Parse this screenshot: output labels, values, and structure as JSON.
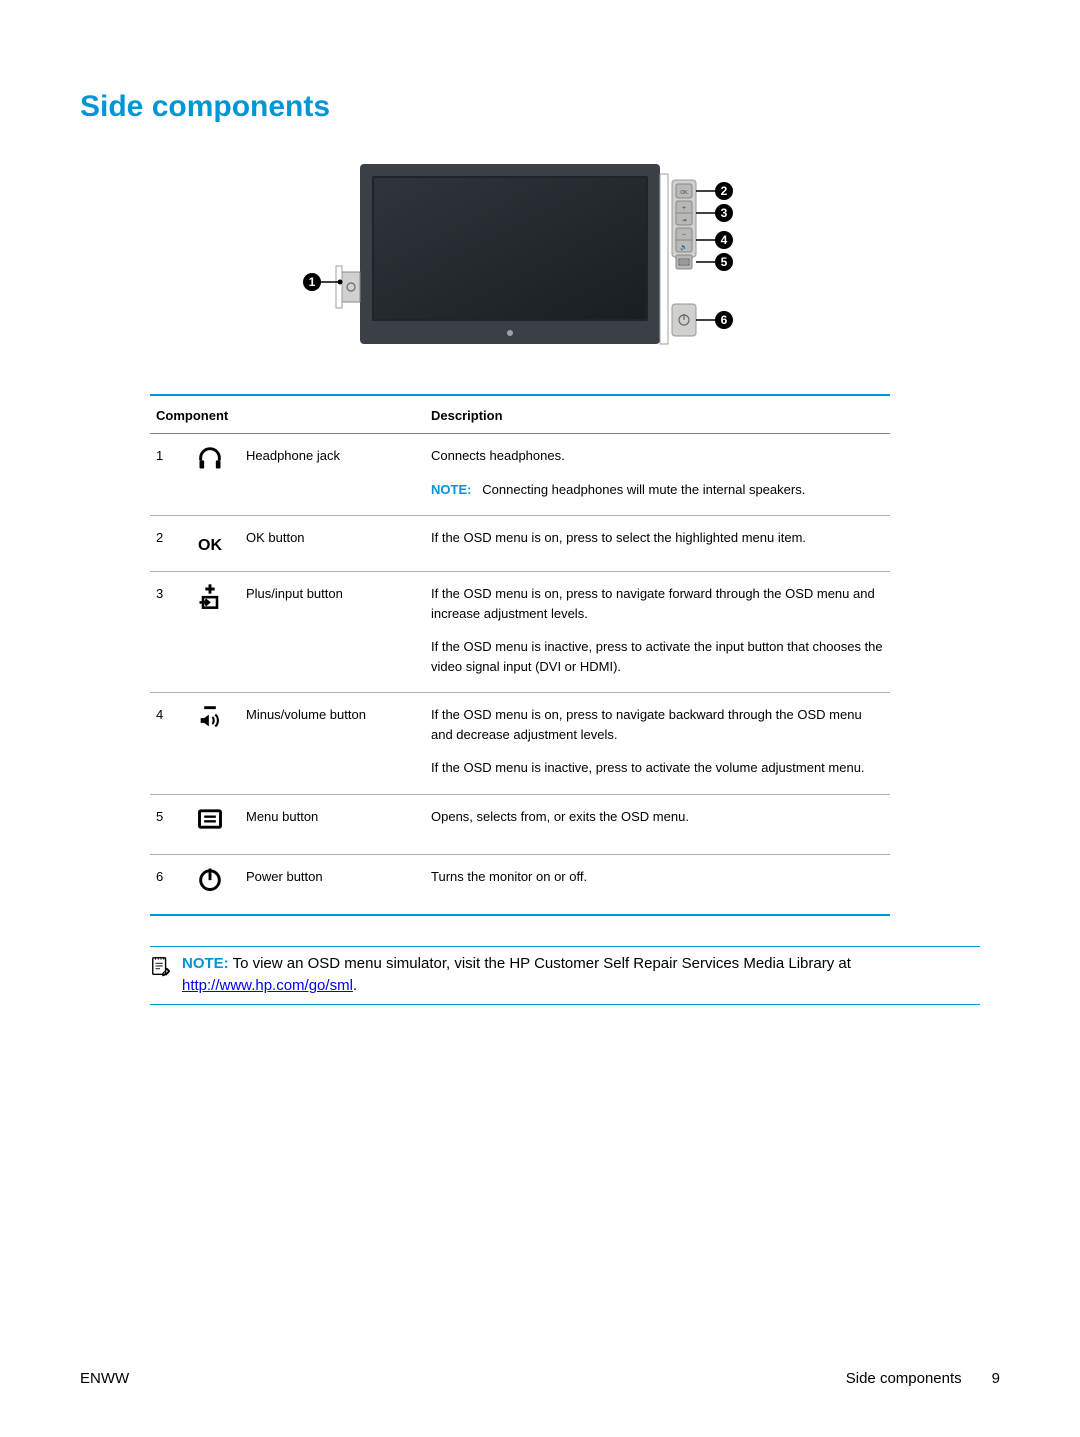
{
  "title": "Side components",
  "table": {
    "headers": {
      "component": "Component",
      "description": "Description"
    },
    "rows": [
      {
        "num": "1",
        "icon": "headphone-icon",
        "component": "Headphone jack",
        "desc": [
          "Connects headphones.",
          {
            "note": "NOTE:",
            "text": "Connecting headphones will mute the internal speakers."
          }
        ]
      },
      {
        "num": "2",
        "icon": "ok-icon",
        "component": "OK button",
        "desc": [
          "If the OSD menu is on, press to select the highlighted menu item."
        ]
      },
      {
        "num": "3",
        "icon": "plus-input-icon",
        "component": "Plus/input button",
        "desc": [
          "If the OSD menu is on, press to navigate forward through the OSD menu and increase adjustment levels.",
          "If the OSD menu is inactive, press to activate the input button that chooses the video signal input (DVI or HDMI)."
        ]
      },
      {
        "num": "4",
        "icon": "minus-volume-icon",
        "component": "Minus/volume button",
        "desc": [
          "If the OSD menu is on, press to navigate backward through the OSD menu and decrease adjustment levels.",
          "If the OSD menu is inactive, press to activate the volume adjustment menu."
        ]
      },
      {
        "num": "5",
        "icon": "menu-icon",
        "component": "Menu button",
        "desc": [
          "Opens, selects from, or exits the OSD menu."
        ]
      },
      {
        "num": "6",
        "icon": "power-icon",
        "component": "Power button",
        "desc": [
          "Turns the monitor on or off."
        ]
      }
    ]
  },
  "bottom_note": {
    "label": "NOTE:",
    "text_before": "To view an OSD menu simulator, visit the HP Customer Self Repair Services Media Library at ",
    "link_text": "http://www.hp.com/go/sml",
    "text_after": "."
  },
  "footer": {
    "left": "ENWW",
    "section": "Side components",
    "page": "9"
  },
  "colors": {
    "accent": "#0096d6",
    "text": "#000000",
    "link": "#0000ee"
  },
  "diagram": {
    "callouts": [
      "1",
      "2",
      "3",
      "4",
      "5",
      "6"
    ],
    "monitor_bg": "#3a4046",
    "screen_bg": "#2b3034",
    "panel_bg": "#d0d0ce",
    "button_bg": "#b8b8b6"
  }
}
